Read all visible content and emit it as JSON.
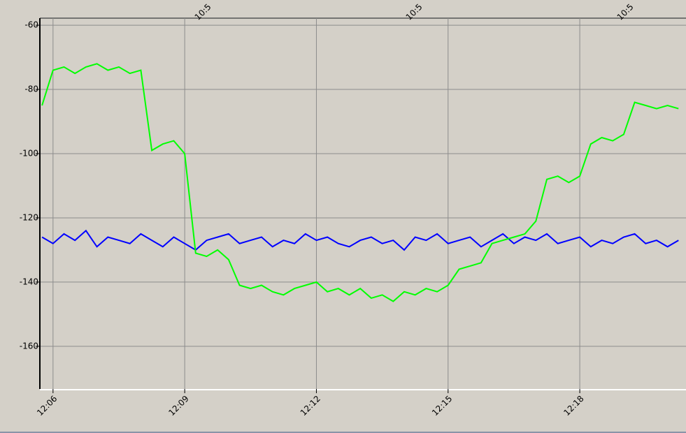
{
  "chart_data": {
    "type": "line",
    "top_labels": [
      "10:5",
      "10:5",
      "10:5"
    ],
    "x": [
      725.75,
      726,
      726.25,
      726.5,
      726.75,
      727,
      727.25,
      727.5,
      727.75,
      728,
      728.25,
      728.5,
      728.75,
      729,
      729.25,
      729.5,
      729.75,
      730,
      730.25,
      730.5,
      730.75,
      731,
      731.25,
      731.5,
      731.75,
      732,
      732.25,
      732.5,
      732.75,
      733,
      733.25,
      733.5,
      733.75,
      734,
      734.25,
      734.5,
      734.75,
      735,
      735.25,
      735.5,
      735.75,
      736,
      736.25,
      736.5,
      736.75,
      737,
      737.25,
      737.5,
      737.75,
      738,
      738.25,
      738.5,
      738.75,
      739,
      739.25,
      739.5,
      739.75,
      740,
      740.25
    ],
    "series": [
      {
        "color": "#00ff00",
        "values": [
          -85,
          -74,
          -73,
          -75,
          -73,
          -72,
          -74,
          -73,
          -75,
          -74,
          -99,
          -97,
          -96,
          -100,
          -131,
          -132,
          -130,
          -133,
          -141,
          -142,
          -141,
          -143,
          -144,
          -142,
          -141,
          -140,
          -143,
          -142,
          -144,
          -142,
          -145,
          -144,
          -146,
          -143,
          -144,
          -142,
          -143,
          -141,
          -136,
          -135,
          -134,
          -128,
          -127,
          -126,
          -125,
          -121,
          -108,
          -107,
          -109,
          -107,
          -97,
          -95,
          -96,
          -94,
          -84,
          -85,
          -86,
          -85,
          -86
        ]
      },
      {
        "color": "#0000ff",
        "values": [
          -126,
          -128,
          -125,
          -127,
          -124,
          -129,
          -126,
          -127,
          -128,
          -125,
          -127,
          -129,
          -126,
          -128,
          -130,
          -127,
          -126,
          -125,
          -128,
          -127,
          -126,
          -129,
          -127,
          -128,
          -125,
          -127,
          -126,
          -128,
          -129,
          -127,
          -126,
          -128,
          -127,
          -130,
          -126,
          -127,
          -125,
          -128,
          -127,
          -126,
          -129,
          -127,
          -125,
          -128,
          -126,
          -127,
          -125,
          -128,
          -127,
          -126,
          -129,
          -127,
          -128,
          -126,
          -125,
          -128,
          -127,
          -129,
          -127
        ]
      }
    ],
    "xlim": [
      725.7,
      740.42
    ],
    "xticks": [
      {
        "value": 726,
        "label": "12:06"
      },
      {
        "value": 729,
        "label": "12:09"
      },
      {
        "value": 732,
        "label": "12:12"
      },
      {
        "value": 735,
        "label": "12:15"
      },
      {
        "value": 738,
        "label": "12:18"
      }
    ],
    "ylim": [
      -173.3,
      -57.8
    ],
    "yticks": [
      -60,
      -80,
      -100,
      -120,
      -140,
      -160
    ],
    "grid": true
  }
}
